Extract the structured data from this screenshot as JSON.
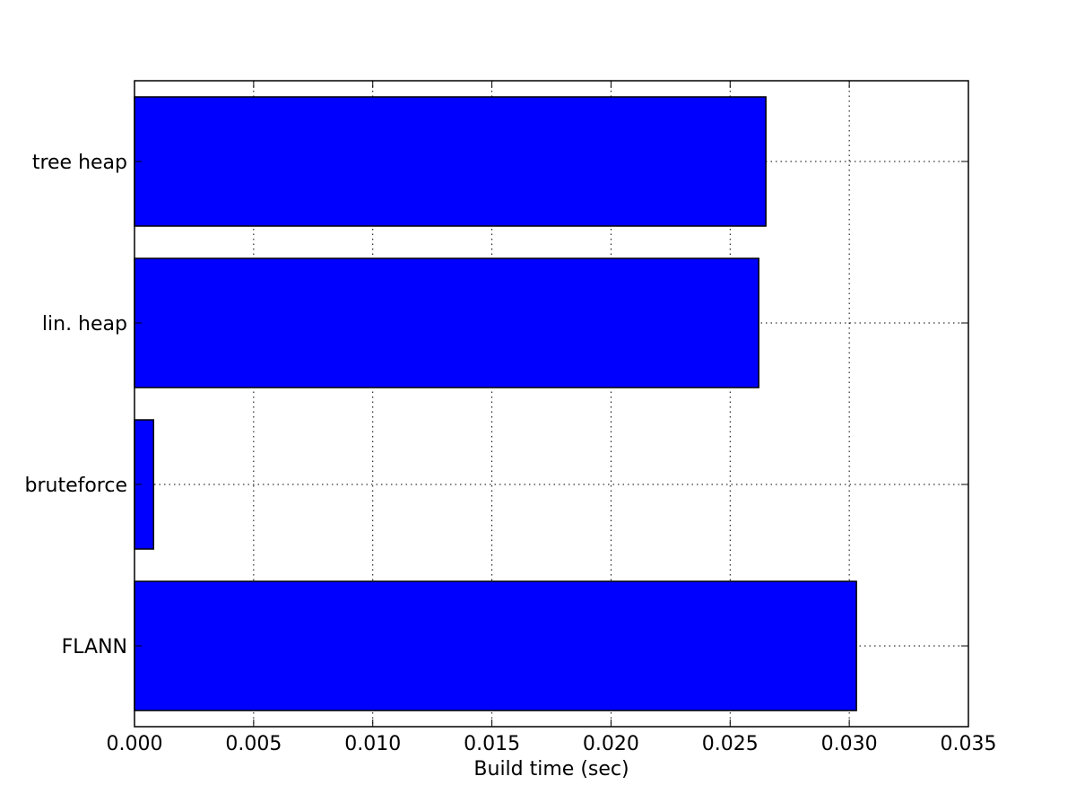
{
  "chart_data": {
    "type": "bar",
    "orientation": "horizontal",
    "title": "",
    "xlabel": "Build time (sec)",
    "ylabel": "",
    "xlim": [
      0,
      0.035
    ],
    "x_ticks": [
      0.0,
      0.005,
      0.01,
      0.015,
      0.02,
      0.025,
      0.03,
      0.035
    ],
    "x_tick_labels": [
      "0.000",
      "0.005",
      "0.010",
      "0.015",
      "0.020",
      "0.025",
      "0.030",
      "0.035"
    ],
    "categories": [
      "FLANN",
      "bruteforce",
      "lin. heap",
      "tree heap"
    ],
    "values": [
      0.0303,
      0.0008,
      0.0262,
      0.0265
    ],
    "bar_color": "#0000ff",
    "grid": true,
    "legend": "none"
  }
}
